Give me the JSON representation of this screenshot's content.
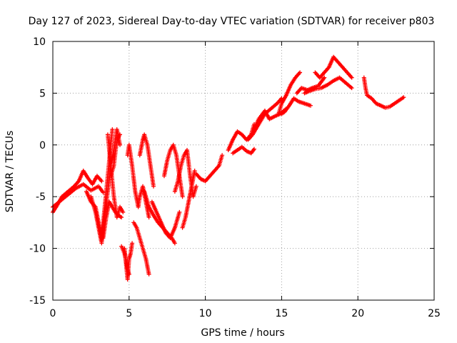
{
  "chart_data": {
    "type": "scatter",
    "title": "Day 127 of 2023, Sidereal Day-to-day VTEC variation (SDTVAR) for receiver p803",
    "xlabel": "GPS time / hours",
    "ylabel": "SDTVAR / TECUs",
    "xlim": [
      0,
      25
    ],
    "ylim": [
      -15,
      10
    ],
    "xticks": [
      "0",
      "5",
      "10",
      "15",
      "20",
      "25"
    ],
    "yticks": [
      "-15",
      "-10",
      "-5",
      "0",
      "5",
      "10"
    ],
    "grid": true,
    "marker": "+",
    "color": "#ff0000",
    "tracks": [
      {
        "x": [
          0.0,
          0.3,
          0.6,
          1.0,
          1.4,
          1.7,
          2.0,
          2.3,
          2.6,
          2.9,
          3.2
        ],
        "y": [
          -6.5,
          -5.8,
          -5.0,
          -4.5,
          -4.0,
          -3.5,
          -2.5,
          -3.2,
          -3.8,
          -3.0,
          -3.5
        ]
      },
      {
        "x": [
          0.0,
          0.5,
          1.0,
          1.5,
          2.0,
          2.5,
          3.0,
          3.3
        ],
        "y": [
          -6.0,
          -5.4,
          -4.8,
          -4.2,
          -3.8,
          -4.4,
          -4.0,
          -4.6
        ]
      },
      {
        "x": [
          2.2,
          2.5,
          2.8,
          3.0,
          3.2,
          3.4,
          3.6,
          3.8,
          3.9
        ],
        "y": [
          -4.5,
          -5.5,
          -6.0,
          -7.5,
          -9.0,
          -6.0,
          -3.0,
          0.0,
          1.5
        ]
      },
      {
        "x": [
          2.5,
          2.8,
          3.0,
          3.2,
          3.4,
          3.6,
          3.8,
          4.0,
          4.2,
          4.4
        ],
        "y": [
          -5.0,
          -6.5,
          -8.0,
          -9.5,
          -7.0,
          -4.5,
          -2.0,
          -0.5,
          1.5,
          0.0
        ]
      },
      {
        "x": [
          3.3,
          3.5,
          3.7,
          3.9,
          4.1,
          4.3,
          4.5
        ],
        "y": [
          -9.0,
          -7.0,
          -5.5,
          -6.0,
          -6.5,
          -6.8,
          -7.0
        ]
      },
      {
        "x": [
          3.6,
          3.8,
          4.0,
          4.2,
          4.4,
          4.6
        ],
        "y": [
          1.0,
          -2.0,
          -5.0,
          -7.0,
          -6.0,
          -6.5
        ]
      },
      {
        "x": [
          3.8,
          4.0,
          4.2,
          4.4
        ],
        "y": [
          -3.0,
          -2.0,
          0.5,
          1.0
        ]
      },
      {
        "x": [
          4.7,
          4.8,
          4.9,
          5.0,
          5.1,
          5.2
        ],
        "y": [
          -10.0,
          -11.5,
          -13.0,
          -11.0,
          -10.5,
          -9.5
        ]
      },
      {
        "x": [
          4.5,
          4.7,
          4.9,
          5.0
        ],
        "y": [
          -9.8,
          -10.5,
          -12.0,
          -12.5
        ]
      },
      {
        "x": [
          4.9,
          5.0,
          5.2,
          5.4,
          5.6,
          5.7,
          5.9,
          6.1,
          6.3
        ],
        "y": [
          -1.0,
          0.0,
          -2.0,
          -4.5,
          -6.0,
          -5.0,
          -4.0,
          -5.5,
          -7.0
        ]
      },
      {
        "x": [
          5.3,
          5.5,
          5.7,
          5.9,
          6.1,
          6.3
        ],
        "y": [
          -7.5,
          -8.0,
          -9.0,
          -10.0,
          -11.0,
          -12.5
        ]
      },
      {
        "x": [
          5.7,
          5.9,
          6.0,
          6.2,
          6.4,
          6.6
        ],
        "y": [
          -1.0,
          0.5,
          1.0,
          0.0,
          -2.0,
          -4.0
        ]
      },
      {
        "x": [
          6.0,
          6.3,
          6.6,
          6.9,
          7.2,
          7.5,
          7.8,
          8.0
        ],
        "y": [
          -4.5,
          -6.0,
          -6.8,
          -7.5,
          -8.0,
          -8.5,
          -9.0,
          -9.5
        ]
      },
      {
        "x": [
          6.5,
          6.8,
          7.1,
          7.4,
          7.7,
          8.0,
          8.3
        ],
        "y": [
          -5.5,
          -6.5,
          -7.5,
          -8.5,
          -9.0,
          -8.0,
          -6.5
        ]
      },
      {
        "x": [
          7.3,
          7.5,
          7.7,
          7.9,
          8.1,
          8.3,
          8.5
        ],
        "y": [
          -3.0,
          -1.5,
          -0.5,
          0.0,
          -1.0,
          -3.0,
          -5.0
        ]
      },
      {
        "x": [
          8.0,
          8.2,
          8.4,
          8.6,
          8.8,
          9.0,
          9.2,
          9.4
        ],
        "y": [
          -4.5,
          -3.5,
          -2.0,
          -1.0,
          -0.5,
          -3.0,
          -5.0,
          -4.0
        ]
      },
      {
        "x": [
          8.5,
          8.7,
          8.9,
          9.1,
          9.3
        ],
        "y": [
          -8.0,
          -7.0,
          -5.5,
          -4.0,
          -2.5
        ]
      },
      {
        "x": [
          9.4,
          9.7,
          10.0,
          10.3,
          10.6,
          10.9,
          11.1
        ],
        "y": [
          -2.8,
          -3.3,
          -3.5,
          -3.0,
          -2.5,
          -2.0,
          -1.0
        ]
      },
      {
        "x": [
          11.5,
          11.8,
          12.1,
          12.4,
          12.7,
          13.0,
          13.2
        ],
        "y": [
          -0.5,
          0.5,
          1.3,
          1.0,
          0.5,
          1.0,
          2.0
        ]
      },
      {
        "x": [
          11.8,
          12.1,
          12.4,
          12.7,
          13.0,
          13.2
        ],
        "y": [
          -0.8,
          -0.5,
          -0.2,
          -0.6,
          -0.8,
          -0.4
        ]
      },
      {
        "x": [
          12.8,
          13.1,
          13.5,
          13.9,
          14.3,
          14.7,
          15.0
        ],
        "y": [
          0.5,
          1.0,
          2.0,
          3.0,
          3.5,
          4.0,
          4.5
        ]
      },
      {
        "x": [
          13.2,
          13.5,
          13.9,
          14.2,
          14.6,
          14.9,
          15.3
        ],
        "y": [
          1.5,
          2.5,
          3.3,
          2.5,
          2.8,
          3.0,
          3.5
        ]
      },
      {
        "x": [
          14.8,
          15.0,
          15.3,
          15.6,
          15.9,
          16.2
        ],
        "y": [
          3.0,
          4.0,
          4.8,
          5.8,
          6.5,
          7.0
        ]
      },
      {
        "x": [
          15.0,
          15.2,
          15.5,
          15.8,
          16.1,
          16.5,
          16.9
        ],
        "y": [
          3.0,
          3.2,
          3.8,
          4.5,
          4.2,
          4.0,
          3.8
        ]
      },
      {
        "x": [
          16.0,
          16.3,
          16.7,
          17.0,
          17.4,
          17.8
        ],
        "y": [
          5.0,
          5.5,
          5.3,
          5.5,
          5.7,
          6.5
        ]
      },
      {
        "x": [
          16.5,
          16.8,
          17.2,
          17.6,
          18.0,
          18.4,
          18.8,
          19.2,
          19.6
        ],
        "y": [
          5.0,
          5.2,
          5.4,
          5.5,
          5.8,
          6.2,
          6.5,
          6.0,
          5.5
        ]
      },
      {
        "x": [
          17.2,
          17.5,
          17.8,
          18.1,
          18.4,
          18.7,
          19.0,
          19.3,
          19.6
        ],
        "y": [
          7.0,
          6.5,
          7.0,
          7.5,
          8.5,
          8.0,
          7.5,
          7.0,
          6.5
        ]
      },
      {
        "x": [
          20.4,
          20.5,
          20.6,
          20.9,
          21.2,
          21.5,
          21.8,
          22.1,
          22.4,
          22.7,
          23.0
        ],
        "y": [
          6.5,
          5.5,
          4.8,
          4.5,
          4.0,
          3.8,
          3.6,
          3.7,
          4.0,
          4.3,
          4.6
        ]
      }
    ]
  }
}
